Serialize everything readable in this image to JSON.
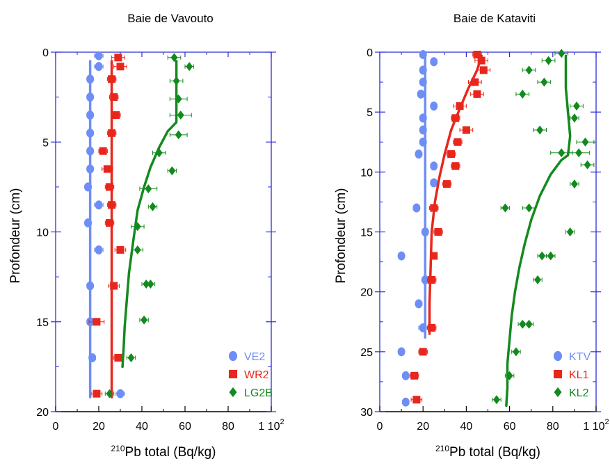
{
  "chart_data": [
    {
      "type": "scatter",
      "title": "Baie de Vavouto",
      "xlabel_super": "210",
      "xlabel": "Pb total (Bq/kg)",
      "ylabel": "Profondeur (cm)",
      "xlim": [
        0,
        100
      ],
      "ylim": [
        0,
        20
      ],
      "y_inverted": true,
      "x_ticks": [
        "0",
        "20",
        "40",
        "60",
        "80",
        "1 10"
      ],
      "x_ticks_exp": "2",
      "y_ticks": [
        "0",
        "5",
        "10",
        "15",
        "20"
      ],
      "legend_position": "bottom-right",
      "colors": {
        "axis": "#2b2bd6",
        "frame": "#000000"
      },
      "series": [
        {
          "name": "VE2",
          "color": "#6f8ef5",
          "marker": "circle",
          "points": [
            [
              20,
              0.2
            ],
            [
              20,
              0.8
            ],
            [
              16,
              1.5
            ],
            [
              16,
              2.5
            ],
            [
              16,
              3.5
            ],
            [
              16,
              4.5
            ],
            [
              16,
              5.5
            ],
            [
              16,
              6.5
            ],
            [
              15,
              7.5
            ],
            [
              20,
              8.5
            ],
            [
              15,
              9.5
            ],
            [
              20,
              11
            ],
            [
              16,
              13
            ],
            [
              16,
              15
            ],
            [
              17,
              17
            ],
            [
              30,
              19
            ]
          ],
          "errors": [
            2,
            2,
            1.5,
            1.5,
            1.5,
            1.5,
            1.5,
            1.5,
            1.5,
            2,
            1.5,
            2,
            1.5,
            1.5,
            1.5,
            2
          ],
          "fit": [
            [
              16,
              0.5
            ],
            [
              16,
              19.2
            ]
          ]
        },
        {
          "name": "WR2",
          "color": "#e8261c",
          "marker": "square",
          "points": [
            [
              29,
              0.3
            ],
            [
              30,
              0.8
            ],
            [
              26,
              1.5
            ],
            [
              27,
              2.5
            ],
            [
              28,
              3.5
            ],
            [
              26,
              4.5
            ],
            [
              22,
              5.5
            ],
            [
              24,
              6.5
            ],
            [
              25,
              7.5
            ],
            [
              26,
              8.5
            ],
            [
              25,
              9.5
            ],
            [
              30,
              11
            ],
            [
              27,
              13
            ],
            [
              19,
              15
            ],
            [
              29,
              17
            ],
            [
              19,
              19
            ]
          ],
          "errors": [
            3,
            3,
            2,
            2,
            2,
            2,
            2,
            2.5,
            2,
            2,
            2,
            2.5,
            2.5,
            3.5,
            2,
            2.5
          ],
          "fit": [
            [
              26,
              0.5
            ],
            [
              26,
              19.2
            ]
          ]
        },
        {
          "name": "LG2B",
          "color": "#138a1e",
          "marker": "diamond",
          "points": [
            [
              55,
              0.3
            ],
            [
              62,
              0.8
            ],
            [
              56,
              1.6
            ],
            [
              57,
              2.6
            ],
            [
              58,
              3.5
            ],
            [
              57,
              4.6
            ],
            [
              48,
              5.6
            ],
            [
              54,
              6.6
            ],
            [
              43,
              7.6
            ],
            [
              45,
              8.6
            ],
            [
              38,
              9.7
            ],
            [
              38,
              11
            ],
            [
              42,
              12.9
            ],
            [
              44,
              12.9
            ],
            [
              41,
              14.9
            ],
            [
              35,
              17
            ],
            [
              25,
              19
            ]
          ],
          "errors": [
            3,
            2,
            3,
            4,
            5,
            4,
            3,
            2,
            4,
            2,
            3,
            2.5,
            2,
            2,
            2,
            2,
            2
          ],
          "fit": [
            [
              56,
              0.5
            ],
            [
              56,
              3.9
            ],
            [
              52,
              4.4
            ],
            [
              48,
              5.3
            ],
            [
              44,
              6.4
            ],
            [
              41,
              7.5
            ],
            [
              38,
              8.8
            ],
            [
              36,
              10.5
            ],
            [
              34,
              12.3
            ],
            [
              33,
              13.8
            ],
            [
              32,
              15.3
            ],
            [
              31.5,
              16.5
            ],
            [
              31,
              17.5
            ]
          ]
        }
      ]
    },
    {
      "type": "scatter",
      "title": "Baie de Kataviti",
      "xlabel_super": "210",
      "xlabel": "Pb total (Bq/kg)",
      "ylabel": "Profondeur (cm)",
      "xlim": [
        0,
        100
      ],
      "ylim": [
        0,
        30
      ],
      "y_inverted": true,
      "x_ticks": [
        "0",
        "20",
        "40",
        "60",
        "80",
        "1 10"
      ],
      "x_ticks_exp": "2",
      "y_ticks": [
        "0",
        "5",
        "10",
        "15",
        "20",
        "25",
        "30"
      ],
      "legend_position": "bottom-right",
      "colors": {
        "axis": "#2b2bd6",
        "frame": "#000000"
      },
      "series": [
        {
          "name": "KTV",
          "color": "#6f8ef5",
          "marker": "circle",
          "points": [
            [
              20,
              0.2
            ],
            [
              25,
              0.8
            ],
            [
              20,
              1.5
            ],
            [
              20,
              2.5
            ],
            [
              19,
              3.5
            ],
            [
              25,
              4.5
            ],
            [
              20,
              5.5
            ],
            [
              20,
              6.5
            ],
            [
              20,
              7.5
            ],
            [
              18,
              8.5
            ],
            [
              25,
              9.5
            ],
            [
              25,
              10.9
            ],
            [
              17,
              13
            ],
            [
              21,
              15
            ],
            [
              10,
              17
            ],
            [
              21,
              19
            ],
            [
              18,
              21
            ],
            [
              20,
              23
            ],
            [
              10,
              25
            ],
            [
              12,
              27
            ],
            [
              12,
              29.2
            ]
          ],
          "errors": [
            1.5,
            1.5,
            1.5,
            1.5,
            1.5,
            1.5,
            1.5,
            1.5,
            1.5,
            1.5,
            1.5,
            1.5,
            1.5,
            1.5,
            1,
            1.5,
            1.5,
            2,
            1,
            1.5,
            1.5
          ],
          "fit": [
            [
              21,
              0.2
            ],
            [
              21,
              23.8
            ]
          ]
        },
        {
          "name": "KL1",
          "color": "#e8261c",
          "marker": "square",
          "points": [
            [
              45,
              0.2
            ],
            [
              47,
              0.7
            ],
            [
              48,
              1.5
            ],
            [
              44,
              2.5
            ],
            [
              45,
              3.5
            ],
            [
              37,
              4.5
            ],
            [
              35,
              5.5
            ],
            [
              40,
              6.5
            ],
            [
              36,
              7.5
            ],
            [
              33,
              8.5
            ],
            [
              35,
              9.5
            ],
            [
              31,
              11
            ],
            [
              25,
              13
            ],
            [
              27,
              15
            ],
            [
              25,
              17
            ],
            [
              24,
              19
            ],
            [
              24,
              23
            ],
            [
              20,
              25
            ],
            [
              16,
              27
            ],
            [
              17,
              29
            ]
          ],
          "errors": [
            2,
            3,
            3,
            3,
            3,
            3,
            2,
            3,
            2,
            2,
            2,
            2,
            2,
            2,
            1.5,
            2,
            2,
            2,
            2,
            2.5
          ],
          "fit": [
            [
              47,
              0.3
            ],
            [
              45,
              1.5
            ],
            [
              41,
              3
            ],
            [
              37,
              4.7
            ],
            [
              33,
              6.5
            ],
            [
              30,
              8.5
            ],
            [
              27.5,
              10.5
            ],
            [
              25.5,
              12.5
            ],
            [
              24,
              15
            ],
            [
              23.5,
              18
            ],
            [
              23,
              21
            ],
            [
              23,
              23.5
            ]
          ]
        },
        {
          "name": "KL2",
          "color": "#138a1e",
          "marker": "diamond",
          "points": [
            [
              84,
              0.1
            ],
            [
              78,
              0.7
            ],
            [
              69,
              1.5
            ],
            [
              76,
              2.5
            ],
            [
              66,
              3.5
            ],
            [
              91,
              4.5
            ],
            [
              90,
              5.5
            ],
            [
              74,
              6.5
            ],
            [
              95,
              7.5
            ],
            [
              92,
              8.4
            ],
            [
              84,
              8.4
            ],
            [
              96,
              9.4
            ],
            [
              90,
              11
            ],
            [
              58,
              13
            ],
            [
              69,
              13
            ],
            [
              88,
              15
            ],
            [
              75,
              17
            ],
            [
              79,
              17
            ],
            [
              73,
              19
            ],
            [
              66,
              22.7
            ],
            [
              69,
              22.7
            ],
            [
              63,
              25
            ],
            [
              60,
              27
            ],
            [
              54,
              29
            ]
          ],
          "errors": [
            3,
            3,
            3,
            3,
            3,
            3,
            2,
            3,
            4,
            5,
            5,
            3,
            2,
            2,
            3,
            2,
            2,
            2,
            2,
            2,
            2,
            2,
            2,
            2
          ],
          "fit": [
            [
              86,
              0.3
            ],
            [
              86,
              3
            ],
            [
              87,
              5
            ],
            [
              88,
              7
            ],
            [
              87,
              8.6
            ],
            [
              84,
              9
            ],
            [
              79,
              10.2
            ],
            [
              74,
              12
            ],
            [
              70,
              14
            ],
            [
              67,
              16
            ],
            [
              64.5,
              18
            ],
            [
              62.5,
              20
            ],
            [
              61,
              22
            ],
            [
              60,
              24
            ],
            [
              59,
              26
            ],
            [
              59,
              28
            ],
            [
              58.5,
              29.5
            ]
          ]
        }
      ]
    }
  ]
}
